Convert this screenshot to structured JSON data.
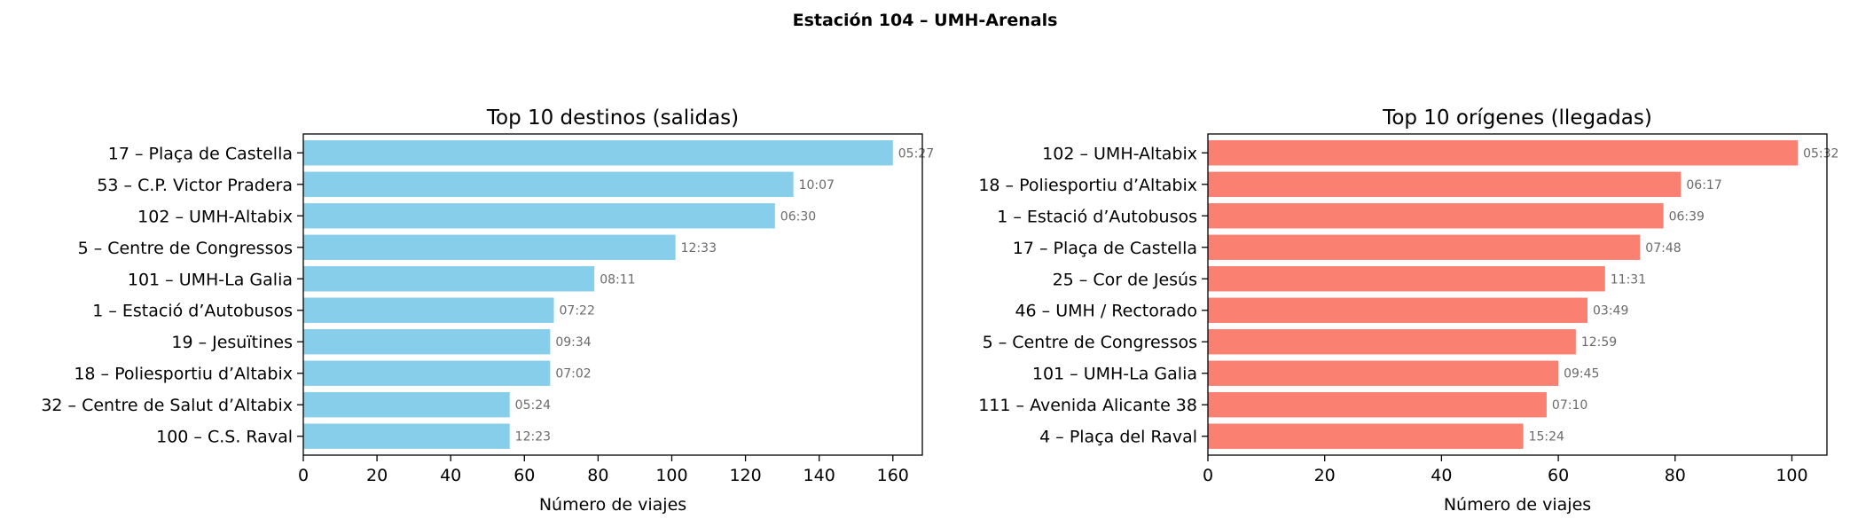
{
  "suptitle": "Estación 104 – UMH-Arenals",
  "chart_data": [
    {
      "type": "bar",
      "orientation": "horizontal",
      "title": "Top 10 destinos (salidas)",
      "xlabel": "Número de viajes",
      "ylabel": "",
      "xlim": [
        0,
        168
      ],
      "xticks": [
        0,
        20,
        40,
        60,
        80,
        100,
        120,
        140,
        160
      ],
      "color": "#87ceeb",
      "categories": [
        "17 – Plaça de Castella",
        "53 – C.P. Victor Pradera",
        "102 – UMH-Altabix",
        "5 – Centre de Congressos",
        "101 – UMH-La Galia",
        "1 – Estació d’Autobusos",
        "19 – Jesuïtines",
        "18 – Poliesportiu d’Altabix",
        "32 – Centre de Salut d’Altabix",
        "100 – C.S. Raval"
      ],
      "values": [
        160,
        133,
        128,
        101,
        79,
        68,
        67,
        67,
        56,
        56
      ],
      "annotations": [
        "05:27",
        "10:07",
        "06:30",
        "12:33",
        "08:11",
        "07:22",
        "09:34",
        "07:02",
        "05:24",
        "12:23"
      ]
    },
    {
      "type": "bar",
      "orientation": "horizontal",
      "title": "Top 10 orígenes (llegadas)",
      "xlabel": "Número de viajes",
      "ylabel": "",
      "xlim": [
        0,
        106
      ],
      "xticks": [
        0,
        20,
        40,
        60,
        80,
        100
      ],
      "color": "#fa8072",
      "categories": [
        "102 – UMH-Altabix",
        "18 – Poliesportiu d’Altabix",
        "1 – Estació d’Autobusos",
        "17 – Plaça de Castella",
        "25 – Cor de Jesús",
        "46 – UMH / Rectorado",
        "5 – Centre de Congressos",
        "101 – UMH-La Galia",
        "111 – Avenida Alicante 38",
        "4 – Plaça del Raval"
      ],
      "values": [
        101,
        81,
        78,
        74,
        68,
        65,
        63,
        60,
        58,
        54
      ],
      "annotations": [
        "05:32",
        "06:17",
        "06:39",
        "07:48",
        "11:31",
        "03:49",
        "12:59",
        "09:45",
        "07:10",
        "15:24"
      ]
    }
  ]
}
